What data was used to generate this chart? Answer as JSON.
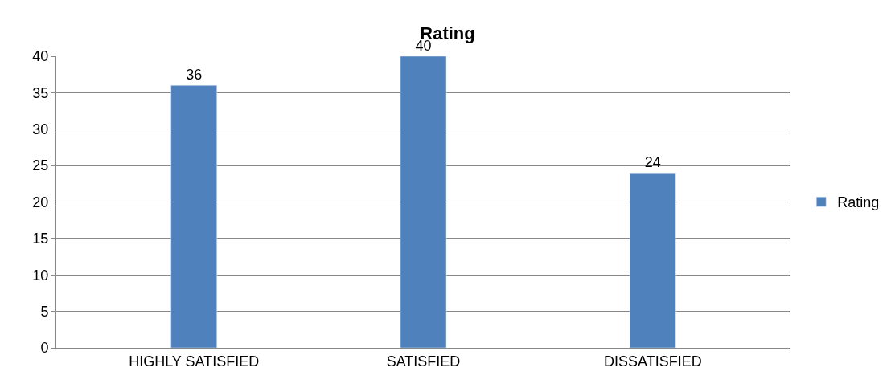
{
  "chart_data": {
    "type": "bar",
    "title": "Rating",
    "categories": [
      "HIGHLY SATISFIED",
      "SATISFIED",
      "DISSATISFIED"
    ],
    "series": [
      {
        "name": "Rating",
        "color": "#4f81bd",
        "values": [
          36,
          40,
          24
        ]
      }
    ],
    "ylim": [
      0,
      40
    ],
    "yticks": [
      0,
      5,
      10,
      15,
      20,
      25,
      30,
      35,
      40
    ],
    "grid": "y",
    "legend": "right",
    "data_labels": true
  }
}
